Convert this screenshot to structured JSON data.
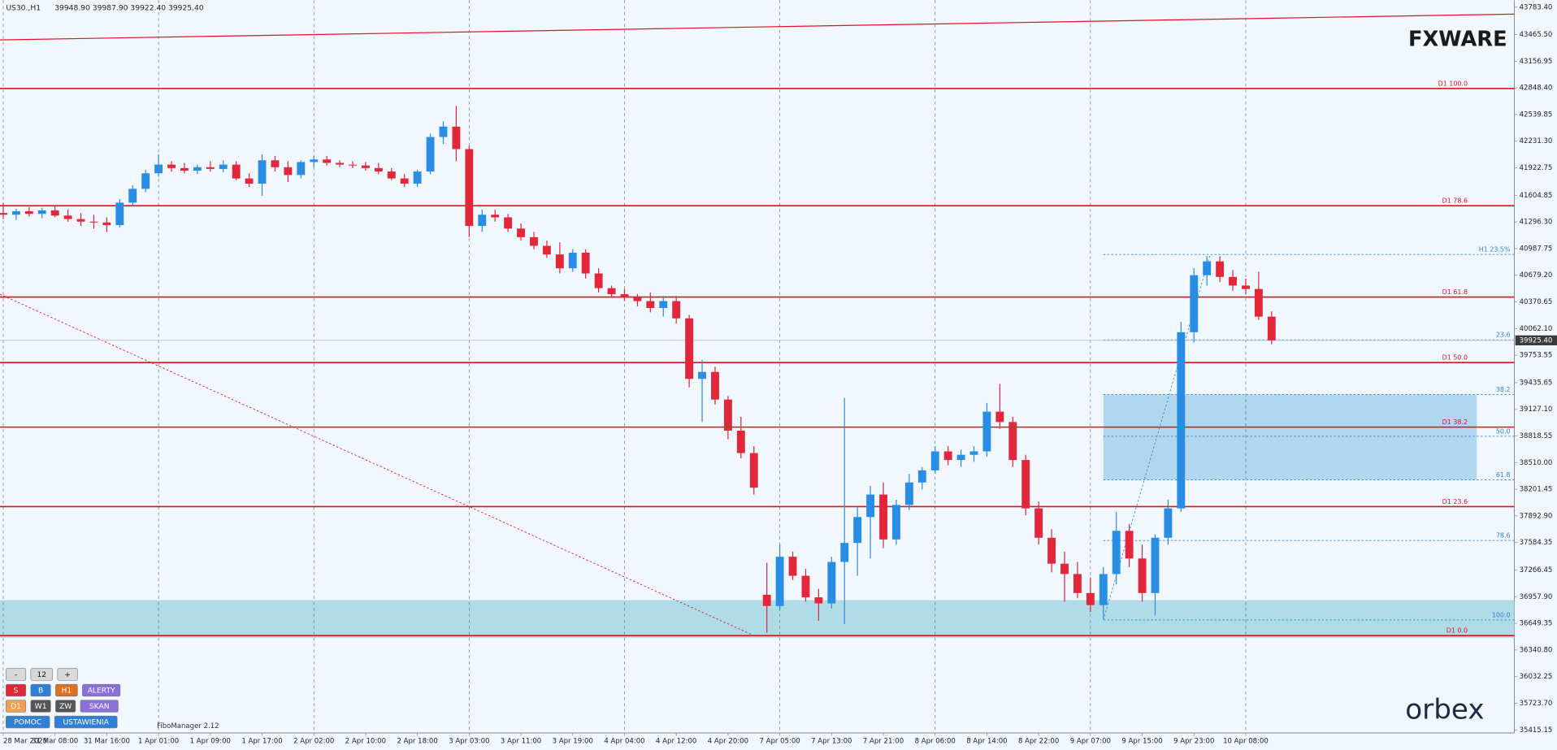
{
  "chart_data": {
    "type": "candlestick",
    "title": "US30.,H1",
    "ohlc_label": "39948.90 39987.90 39922.40 39925.40",
    "up_color": "#2a8de4",
    "down_color": "#e3273a",
    "xlim": [
      -0.5,
      233.5
    ],
    "ylim": [
      35380,
      43864
    ],
    "xticks": [
      {
        "value": 0,
        "label": "28 Mar 2025"
      },
      {
        "value": 8,
        "label": "31 Mar 08:00"
      },
      {
        "value": 16,
        "label": "31 Mar 16:00"
      },
      {
        "value": 24,
        "label": "1 Apr 01:00"
      },
      {
        "value": 32,
        "label": "1 Apr 09:00"
      },
      {
        "value": 40,
        "label": "1 Apr 17:00"
      },
      {
        "value": 48,
        "label": "2 Apr 02:00"
      },
      {
        "value": 56,
        "label": "2 Apr 10:00"
      },
      {
        "value": 64,
        "label": "2 Apr 18:00"
      },
      {
        "value": 72,
        "label": "3 Apr 03:00"
      },
      {
        "value": 80,
        "label": "3 Apr 11:00"
      },
      {
        "value": 88,
        "label": "3 Apr 19:00"
      },
      {
        "value": 96,
        "label": "4 Apr 04:00"
      },
      {
        "value": 104,
        "label": "4 Apr 12:00"
      },
      {
        "value": 112,
        "label": "4 Apr 20:00"
      },
      {
        "value": 120,
        "label": "7 Apr 05:00"
      },
      {
        "value": 128,
        "label": "7 Apr 13:00"
      },
      {
        "value": 136,
        "label": "7 Apr 21:00"
      },
      {
        "value": 144,
        "label": "8 Apr 06:00"
      },
      {
        "value": 152,
        "label": "8 Apr 14:00"
      },
      {
        "value": 160,
        "label": "8 Apr 22:00"
      },
      {
        "value": 168,
        "label": "9 Apr 07:00"
      },
      {
        "value": 176,
        "label": "9 Apr 15:00"
      },
      {
        "value": 184,
        "label": "9 Apr 23:00"
      },
      {
        "value": 192,
        "label": "10 Apr 08:00"
      }
    ],
    "yticks": [
      {
        "value": 43783.4,
        "label": "43783.40"
      },
      {
        "value": 43465.5,
        "label": "43465.50"
      },
      {
        "value": 43156.95,
        "label": "43156.95"
      },
      {
        "value": 42848.4,
        "label": "42848.40"
      },
      {
        "value": 42539.85,
        "label": "42539.85"
      },
      {
        "value": 42231.3,
        "label": "42231.30"
      },
      {
        "value": 41922.75,
        "label": "41922.75"
      },
      {
        "value": 41604.85,
        "label": "41604.85"
      },
      {
        "value": 41296.3,
        "label": "41296.30"
      },
      {
        "value": 40987.75,
        "label": "40987.75"
      },
      {
        "value": 40679.2,
        "label": "40679.20"
      },
      {
        "value": 40370.65,
        "label": "40370.65"
      },
      {
        "value": 40062.1,
        "label": "40062.10"
      },
      {
        "value": 39753.55,
        "label": "39753.55"
      },
      {
        "value": 39435.65,
        "label": "39435.65"
      },
      {
        "value": 39127.1,
        "label": "39127.10"
      },
      {
        "value": 38818.55,
        "label": "38818.55"
      },
      {
        "value": 38510,
        "label": "38510.00"
      },
      {
        "value": 38201.45,
        "label": "38201.45"
      },
      {
        "value": 37892.9,
        "label": "37892.90"
      },
      {
        "value": 37584.35,
        "label": "37584.35"
      },
      {
        "value": 37266.45,
        "label": "37266.45"
      },
      {
        "value": 36957.9,
        "label": "36957.90"
      },
      {
        "value": 36649.35,
        "label": "36649.35"
      },
      {
        "value": 36340.8,
        "label": "36340.80"
      },
      {
        "value": 36032.25,
        "label": "36032.25"
      },
      {
        "value": 35723.7,
        "label": "35723.70"
      },
      {
        "value": 35415.15,
        "label": "35415.15"
      }
    ],
    "current_price": {
      "value": 39925.4,
      "label": "39925.40"
    },
    "x": [
      0,
      2,
      4,
      6,
      8,
      10,
      12,
      14,
      16,
      18,
      20,
      22,
      24,
      26,
      28,
      30,
      32,
      34,
      36,
      38,
      40,
      42,
      44,
      46,
      48,
      50,
      52,
      54,
      56,
      58,
      60,
      62,
      64,
      66,
      68,
      70,
      72,
      74,
      76,
      78,
      80,
      82,
      84,
      86,
      88,
      90,
      92,
      94,
      96,
      98,
      100,
      102,
      104,
      106,
      108,
      110,
      112,
      114,
      116,
      118,
      120,
      122,
      124,
      126,
      128,
      130,
      132,
      134,
      136,
      138,
      140,
      142,
      144,
      146,
      148,
      150,
      152,
      154,
      156,
      158,
      160,
      162,
      164,
      166,
      168,
      170,
      172,
      174,
      176,
      178,
      180,
      182,
      184,
      186,
      188,
      190,
      192,
      194,
      196
    ],
    "candles": [
      [
        41400,
        41520,
        41330,
        41380
      ],
      [
        41380,
        41450,
        41320,
        41420
      ],
      [
        41420,
        41470,
        41360,
        41390
      ],
      [
        41390,
        41460,
        41340,
        41430
      ],
      [
        41430,
        41480,
        41350,
        41370
      ],
      [
        41370,
        41440,
        41300,
        41330
      ],
      [
        41330,
        41400,
        41250,
        41300
      ],
      [
        41300,
        41380,
        41220,
        41290
      ],
      [
        41290,
        41350,
        41180,
        41260
      ],
      [
        41260,
        41560,
        41230,
        41520
      ],
      [
        41520,
        41720,
        41480,
        41680
      ],
      [
        41680,
        41900,
        41640,
        41860
      ],
      [
        41860,
        42080,
        41820,
        41960
      ],
      [
        41960,
        42000,
        41880,
        41920
      ],
      [
        41920,
        41980,
        41860,
        41890
      ],
      [
        41890,
        41960,
        41850,
        41930
      ],
      [
        41930,
        42000,
        41880,
        41910
      ],
      [
        41910,
        42010,
        41870,
        41960
      ],
      [
        41960,
        42000,
        41780,
        41800
      ],
      [
        41800,
        41860,
        41700,
        41740
      ],
      [
        41740,
        42080,
        41600,
        42010
      ],
      [
        42010,
        42060,
        41880,
        41930
      ],
      [
        41930,
        42000,
        41760,
        41840
      ],
      [
        41840,
        42010,
        41800,
        41990
      ],
      [
        41990,
        42060,
        41930,
        42020
      ],
      [
        42020,
        42060,
        41950,
        41980
      ],
      [
        41980,
        42010,
        41930,
        41960
      ],
      [
        41960,
        42000,
        41920,
        41950
      ],
      [
        41950,
        41990,
        41890,
        41920
      ],
      [
        41920,
        41980,
        41850,
        41880
      ],
      [
        41880,
        41920,
        41780,
        41800
      ],
      [
        41800,
        41850,
        41700,
        41740
      ],
      [
        41740,
        41900,
        41700,
        41880
      ],
      [
        41880,
        42320,
        41850,
        42280
      ],
      [
        42280,
        42460,
        42200,
        42400
      ],
      [
        42400,
        42640,
        42000,
        42140
      ],
      [
        42140,
        42180,
        41120,
        41250
      ],
      [
        41250,
        41440,
        41180,
        41380
      ],
      [
        41380,
        41440,
        41300,
        41350
      ],
      [
        41350,
        41390,
        41180,
        41220
      ],
      [
        41220,
        41280,
        41080,
        41120
      ],
      [
        41120,
        41180,
        40980,
        41020
      ],
      [
        41020,
        41080,
        40880,
        40920
      ],
      [
        40920,
        41060,
        40700,
        40760
      ],
      [
        40760,
        40980,
        40720,
        40940
      ],
      [
        40940,
        40980,
        40640,
        40700
      ],
      [
        40700,
        40760,
        40480,
        40530
      ],
      [
        40530,
        40560,
        40420,
        40460
      ],
      [
        40460,
        40520,
        40380,
        40420
      ],
      [
        40420,
        40460,
        40320,
        40380
      ],
      [
        40380,
        40480,
        40250,
        40300
      ],
      [
        40300,
        40440,
        40200,
        40380
      ],
      [
        40380,
        40440,
        40120,
        40180
      ],
      [
        40180,
        40220,
        39380,
        39480
      ],
      [
        39480,
        39700,
        38980,
        39560
      ],
      [
        39560,
        39620,
        39180,
        39240
      ],
      [
        39240,
        39280,
        38780,
        38880
      ],
      [
        38880,
        39040,
        38560,
        38620
      ],
      [
        38620,
        38700,
        38140,
        38220
      ],
      [
        36980,
        37350,
        36540,
        36850
      ],
      [
        36850,
        37560,
        36800,
        37420
      ],
      [
        37420,
        37480,
        37150,
        37200
      ],
      [
        37200,
        37280,
        36900,
        36950
      ],
      [
        36950,
        37050,
        36680,
        36880
      ],
      [
        36880,
        37420,
        36820,
        37360
      ],
      [
        37360,
        39260,
        36640,
        37580
      ],
      [
        37580,
        38000,
        37200,
        37880
      ],
      [
        37880,
        38240,
        37400,
        38140
      ],
      [
        38140,
        38280,
        37520,
        37620
      ],
      [
        37620,
        38080,
        37560,
        38020
      ],
      [
        38020,
        38380,
        37960,
        38280
      ],
      [
        38280,
        38460,
        38200,
        38420
      ],
      [
        38420,
        38700,
        38380,
        38640
      ],
      [
        38640,
        38700,
        38480,
        38540
      ],
      [
        38540,
        38660,
        38460,
        38600
      ],
      [
        38600,
        38700,
        38520,
        38640
      ],
      [
        38640,
        39200,
        38580,
        39100
      ],
      [
        39100,
        39420,
        38900,
        38980
      ],
      [
        38980,
        39040,
        38460,
        38540
      ],
      [
        38540,
        38600,
        37900,
        37980
      ],
      [
        37980,
        38060,
        37560,
        37640
      ],
      [
        37640,
        37740,
        37240,
        37340
      ],
      [
        37340,
        37480,
        36900,
        37220
      ],
      [
        37220,
        37360,
        36940,
        37000
      ],
      [
        37000,
        37180,
        36780,
        36860
      ],
      [
        36860,
        37300,
        36700,
        37220
      ],
      [
        37220,
        37940,
        37100,
        37720
      ],
      [
        37720,
        37800,
        37300,
        37400
      ],
      [
        37400,
        37560,
        36900,
        37000
      ],
      [
        37000,
        37680,
        36740,
        37640
      ],
      [
        37640,
        38080,
        37560,
        37980
      ],
      [
        37980,
        40140,
        37940,
        40020
      ],
      [
        40020,
        40760,
        39900,
        40680
      ],
      [
        40680,
        40900,
        40560,
        40840
      ],
      [
        40840,
        40900,
        40600,
        40660
      ],
      [
        40660,
        40740,
        40500,
        40560
      ],
      [
        40560,
        40640,
        40460,
        40520
      ],
      [
        40520,
        40720,
        40160,
        40200
      ],
      [
        40200,
        40260,
        39880,
        39925
      ]
    ],
    "levels": [
      {
        "label": "D1 100.0",
        "value": 42841
      },
      {
        "label": "D1 78.6",
        "value": 41484
      },
      {
        "label": "D1 61.8",
        "value": 40427
      },
      {
        "label": "D1 50.0",
        "value": 39668
      },
      {
        "label": "D1 38.2",
        "value": 38921
      },
      {
        "label": "D1 23.6",
        "value": 38001
      },
      {
        "label": "D1 0.0",
        "value": 36507
      }
    ],
    "level_color": "#e3101e",
    "fib": {
      "color": "#2f86d6",
      "x": [
        170,
        233.5
      ],
      "levels": [
        {
          "label": "H1 23.5%",
          "value": 40920
        },
        {
          "label": "23.6",
          "value": 39931
        },
        {
          "label": "38.2",
          "value": 39298
        },
        {
          "label": "50.0",
          "value": 38815
        },
        {
          "label": "61.8",
          "value": 38310
        },
        {
          "label": "78.6",
          "value": 37608
        },
        {
          "label": "100.0",
          "value": 36688
        }
      ],
      "diagonal": {
        "x": [
          170,
          186.5
        ],
        "y": [
          36688,
          40920
        ]
      }
    },
    "zones": [
      {
        "x": [
          170,
          227.7
        ],
        "y": [
          38310,
          39298
        ],
        "color": "#a9d3ec"
      },
      {
        "x": [
          -0.5,
          233.5
        ],
        "y": [
          36481,
          36918
        ],
        "color": "#a8d8e6"
      }
    ],
    "trendlines": [
      {
        "x": [
          -0.5,
          233.5
        ],
        "y": [
          43404,
          43703
        ],
        "dashed": false
      },
      {
        "x": [
          -0.5,
          116
        ],
        "y": [
          40460,
          36507
        ],
        "dashed": true
      }
    ]
  },
  "brand": "FXWARE",
  "footer_brand": "orbex",
  "indicator": "FiboManager 2.12",
  "panel": {
    "rows": [
      [
        {
          "label": "-",
          "color": "#d8d8d8"
        },
        {
          "label": "12",
          "color": "#d8d8d8"
        },
        {
          "label": "+",
          "color": "#d8d8d8"
        }
      ],
      [
        {
          "label": "S",
          "color": "#e3273a"
        },
        {
          "label": "B",
          "color": "#2f7fd8"
        },
        {
          "label": "H1",
          "color": "#e07020"
        },
        {
          "label": "ALERTY",
          "color": "#8a6fd8"
        }
      ],
      [
        {
          "label": "D1",
          "color": "#f0a050"
        },
        {
          "label": "W1",
          "color": "#555555"
        },
        {
          "label": "ZW",
          "color": "#555555"
        },
        {
          "label": "SKAN",
          "color": "#8a6fd8"
        }
      ],
      [
        {
          "label": "POMOC",
          "color": "#2f7fd8"
        },
        {
          "label": "USTAWIENIA",
          "color": "#2f7fd8"
        }
      ]
    ]
  }
}
